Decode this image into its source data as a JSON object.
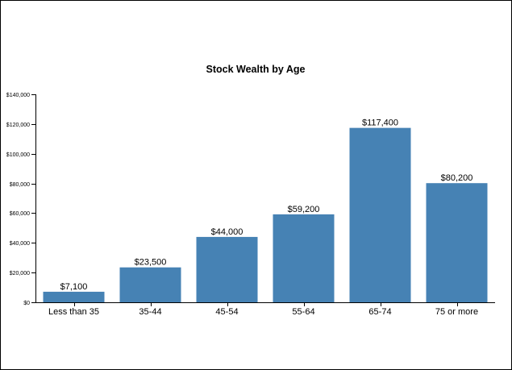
{
  "chart_data": {
    "type": "bar",
    "title": "Stock Wealth by Age",
    "xlabel": "",
    "ylabel": "",
    "categories": [
      "Less than 35",
      "35-44",
      "45-54",
      "55-64",
      "65-74",
      "75 or more"
    ],
    "values": [
      7100,
      23500,
      44000,
      59200,
      117400,
      80200
    ],
    "data_labels": [
      "$7,100",
      "$23,500",
      "$44,000",
      "$59,200",
      "$117,400",
      "$80,200"
    ],
    "ylim": [
      0,
      140000
    ],
    "yticks": [
      0,
      20000,
      40000,
      60000,
      80000,
      100000,
      120000,
      140000
    ],
    "ytick_labels": [
      "$0",
      "$20,000",
      "$40,000",
      "$60,000",
      "$80,000",
      "$100,000",
      "$120,000",
      "$140,000"
    ],
    "bar_color": "#4682b4",
    "grid": false,
    "legend": "none"
  }
}
